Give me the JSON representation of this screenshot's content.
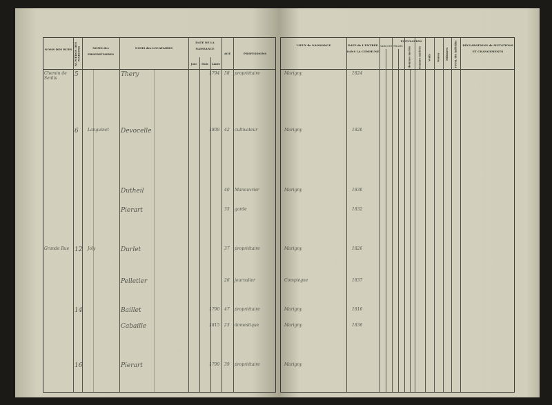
{
  "left_headers": {
    "rues": "NOMS DES RUES",
    "numeros": "NUMÉROS DES MAISONS",
    "proprietaires": "NOMS des PROPRIÉTAIRES",
    "locataires": "NOMS des LOCATAIRES",
    "date": "DATE DE LA NAISSANCE",
    "jour": "Jour",
    "mois": "Mois",
    "annee": "Année",
    "age": "AGE",
    "professions": "PROFESSIONS"
  },
  "right_headers": {
    "lieux": "LIEUX de NAISSANCE",
    "date_entree": "DATE de L'ENTRÉE DANS LA COMMUNE",
    "population": "POPULATION",
    "garcons": "GARÇONS",
    "filles": "FILLES",
    "hommes_maries": "Hommes mariés",
    "femmes_mariees": "Femmes mariées",
    "veufs": "Veufs",
    "veuves": "Veuves",
    "militaires": "Militaires",
    "total": "TOTAL des individus",
    "declarations": "DÉCLARATIONS de MUTATIONS ET CHANGEMENTS"
  },
  "entries": [
    {
      "rue": "Chemin de Senlis",
      "num": "5",
      "prop": "",
      "loc": "Thery",
      "annee": "1794",
      "age": "58",
      "prof": "propriétaire",
      "lieu": "Marigny",
      "entree": "1824"
    },
    {
      "rue": "",
      "num": "6",
      "prop": "Languinet",
      "loc": "Devocelle",
      "annee": "1808",
      "age": "42",
      "prof": "cultivateur",
      "lieu": "Marigny",
      "entree": "1820"
    },
    {
      "rue": "",
      "num": "",
      "prop": "",
      "loc": "Dutheil",
      "annee": "",
      "age": "40",
      "prof": "Manouvrier",
      "lieu": "Marigny",
      "entree": "1830"
    },
    {
      "rue": "",
      "num": "",
      "prop": "",
      "loc": "Pierart",
      "annee": "",
      "age": "35",
      "prof": "garde",
      "lieu": "",
      "entree": "1832"
    },
    {
      "rue": "Grande Rue",
      "num": "12",
      "prop": "Joly",
      "loc": "Durlet",
      "annee": "",
      "age": "37",
      "prof": "propriétaire",
      "lieu": "Marigny",
      "entree": "1826"
    },
    {
      "rue": "",
      "num": "",
      "prop": "",
      "loc": "Pelletier",
      "annee": "",
      "age": "26",
      "prof": "journalier",
      "lieu": "Compiègne",
      "entree": "1837"
    },
    {
      "rue": "",
      "num": "14",
      "prop": "",
      "loc": "Baillet",
      "annee": "1790",
      "age": "47",
      "prof": "propriétaire",
      "lieu": "Marigny",
      "entree": "1816"
    },
    {
      "rue": "",
      "num": "",
      "prop": "",
      "loc": "Cabaille",
      "annee": "1815",
      "age": "23",
      "prof": "domestique",
      "lieu": "Marigny",
      "entree": "1836"
    },
    {
      "rue": "",
      "num": "16",
      "prop": "",
      "loc": "Pierart",
      "annee": "1799",
      "age": "39",
      "prof": "propriétaire",
      "lieu": "Marigny",
      "entree": ""
    }
  ]
}
